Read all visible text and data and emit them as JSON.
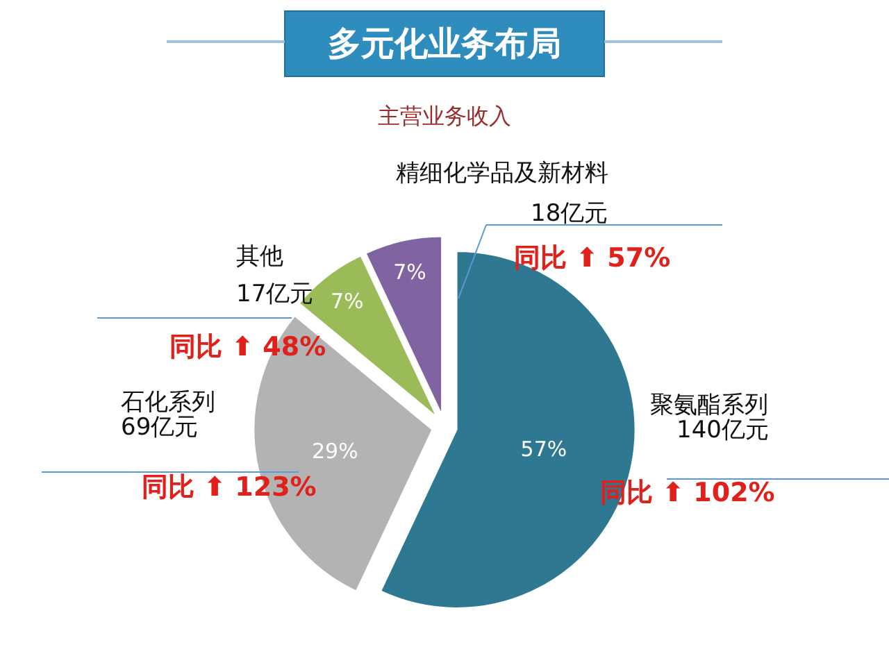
{
  "chart_data": {
    "type": "pie",
    "title": "多元化业务布局",
    "subtitle": "主营业务收入",
    "categories": [
      "聚氨酯系列",
      "石化系列",
      "其他",
      "精细化学品及新材料"
    ],
    "values": [
      57,
      29,
      7,
      7
    ],
    "value_labels": [
      "57%",
      "29%",
      "7%",
      "7%"
    ],
    "colors": [
      "#2e7891",
      "#b3b3b3",
      "#9bbb59",
      "#8064a2"
    ],
    "annotations": [
      "140亿元",
      "同比 ⬆ 102%",
      "69亿元",
      "同比 ⬆ 123%",
      "17亿元",
      "同比 ⬆ 48%",
      "18亿元",
      "同比 ⬆ 57%"
    ],
    "legend": false
  }
}
